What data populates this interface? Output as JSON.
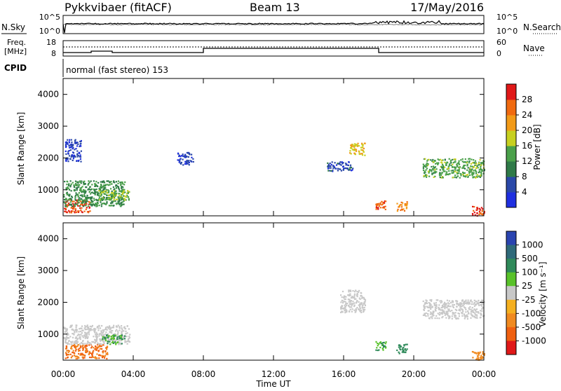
{
  "header": {
    "station": "Pykkvibaer (fitACF)",
    "beam": "Beam 13",
    "date": "17/May/2016"
  },
  "summary_panels": {
    "nsky_label": "N.Sky",
    "nsearch_label": "N.Search",
    "noise_ticks": [
      "10^5",
      "10^0"
    ],
    "freq_label_line1": "Freq.",
    "freq_label_line2": "[MHz]",
    "freq_ticks": [
      "18",
      "8"
    ],
    "nave_label": "Nave",
    "nave_ticks": [
      "60",
      "0"
    ],
    "cpid_label": "CPID",
    "cpid_value": "normal (fast stereo) 153"
  },
  "axis": {
    "xlabel": "Time UT",
    "x_ticks": [
      "00:00",
      "04:00",
      "08:00",
      "12:00",
      "16:00",
      "20:00",
      "00:00"
    ],
    "ylabel": "Slant Range [km]",
    "y_ticks": [
      "1000",
      "2000",
      "3000",
      "4000"
    ]
  },
  "colorbars": {
    "power": {
      "label": "Power [dB]",
      "ticks": [
        "4",
        "8",
        "12",
        "16",
        "20",
        "24",
        "28"
      ],
      "colors": [
        "#1f2fe0",
        "#2a48a8",
        "#2f7a48",
        "#4aa04a",
        "#c7d020",
        "#f29a18",
        "#f06a10",
        "#e01818"
      ]
    },
    "velocity": {
      "label": "Velocity [m s⁻¹]",
      "ticks": [
        "1000",
        "500",
        "100",
        "25",
        "-25",
        "-100",
        "-500",
        "-1000"
      ],
      "colors": [
        "#2a44b0",
        "#2f6a7a",
        "#2f8a5a",
        "#59c22a",
        "#c8c8c8",
        "#f5b020",
        "#f08a20",
        "#f06010",
        "#e01818"
      ]
    }
  },
  "chart_data": [
    {
      "type": "heatmap",
      "title": "Power [dB]",
      "xlabel": "Time UT",
      "ylabel": "Slant Range [km]",
      "x_range_hours": [
        0,
        24
      ],
      "y_range_km": [
        180,
        4500
      ],
      "color_range": [
        0,
        30
      ],
      "regions": [
        {
          "t0": 0.0,
          "t1": 1.5,
          "r0": 300,
          "r1": 700,
          "value": 28
        },
        {
          "t0": 0.0,
          "t1": 3.5,
          "r0": 500,
          "r1": 1300,
          "value": 12
        },
        {
          "t0": 0.1,
          "t1": 1.0,
          "r0": 1900,
          "r1": 2600,
          "value": 5
        },
        {
          "t0": 2.0,
          "t1": 3.8,
          "r0": 700,
          "r1": 1000,
          "value": 16
        },
        {
          "t0": 6.5,
          "t1": 7.4,
          "r0": 1800,
          "r1": 2200,
          "value": 5
        },
        {
          "t0": 15.0,
          "t1": 16.5,
          "r0": 1600,
          "r1": 1900,
          "value": 6
        },
        {
          "t0": 16.3,
          "t1": 17.2,
          "r0": 2100,
          "r1": 2500,
          "value": 20
        },
        {
          "t0": 17.8,
          "t1": 18.4,
          "r0": 400,
          "r1": 700,
          "value": 27
        },
        {
          "t0": 19.0,
          "t1": 19.6,
          "r0": 350,
          "r1": 650,
          "value": 24
        },
        {
          "t0": 20.5,
          "t1": 24.0,
          "r0": 1400,
          "r1": 2000,
          "value": 14
        },
        {
          "t0": 23.3,
          "t1": 24.0,
          "r0": 200,
          "r1": 500,
          "value": 28
        }
      ]
    },
    {
      "type": "heatmap",
      "title": "Velocity [m s⁻¹]",
      "xlabel": "Time UT",
      "ylabel": "Slant Range [km]",
      "x_range_hours": [
        0,
        24
      ],
      "y_range_km": [
        180,
        4500
      ],
      "color_range": [
        -1000,
        1000
      ],
      "regions": [
        {
          "t0": 0.1,
          "t1": 2.5,
          "r0": 250,
          "r1": 700,
          "value": -500
        },
        {
          "t0": 0.0,
          "t1": 3.8,
          "r0": 700,
          "r1": 1300,
          "value": 0
        },
        {
          "t0": 2.2,
          "t1": 3.5,
          "r0": 700,
          "r1": 1000,
          "value": 100
        },
        {
          "t0": 15.8,
          "t1": 17.2,
          "r0": 1700,
          "r1": 2400,
          "value": 0
        },
        {
          "t0": 17.8,
          "t1": 18.4,
          "r0": 500,
          "r1": 800,
          "value": 100
        },
        {
          "t0": 19.0,
          "t1": 19.6,
          "r0": 400,
          "r1": 700,
          "value": 300
        },
        {
          "t0": 20.5,
          "t1": 24.0,
          "r0": 1500,
          "r1": 2100,
          "value": 0
        },
        {
          "t0": 23.3,
          "t1": 24.0,
          "r0": 200,
          "r1": 500,
          "value": -300
        }
      ]
    }
  ]
}
